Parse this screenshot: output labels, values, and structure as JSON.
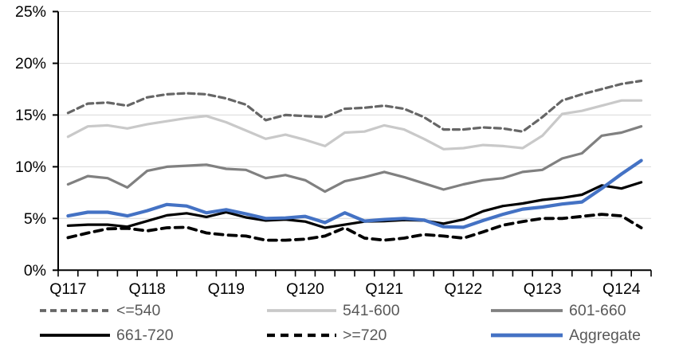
{
  "chart_data": {
    "type": "line",
    "title": "",
    "background": "#ffffff",
    "y_axis": {
      "min": 0,
      "max": 25,
      "tick_step": 5,
      "tick_labels": [
        "0%",
        "5%",
        "10%",
        "15%",
        "20%",
        "25%"
      ],
      "unit": "%"
    },
    "x_axis": {
      "n_points": 30,
      "first_point": "Q1 2017",
      "frequency": "quarterly",
      "visible_labels": [
        {
          "label": "Q117",
          "point_index": 0
        },
        {
          "label": "Q118",
          "point_index": 4
        },
        {
          "label": "Q119",
          "point_index": 8
        },
        {
          "label": "Q120",
          "point_index": 12
        },
        {
          "label": "Q121",
          "point_index": 16
        },
        {
          "label": "Q122",
          "point_index": 20
        },
        {
          "label": "Q123",
          "point_index": 24
        },
        {
          "label": "Q124",
          "point_index": 28
        }
      ]
    },
    "grid": {
      "horizontal": true,
      "vertical": false,
      "color": "#d9d9d9"
    },
    "series": [
      {
        "name": "<=540",
        "color": "#666666",
        "style": "dashed",
        "width": 3.2,
        "dash": "8 5",
        "values": [
          15.2,
          16.1,
          16.2,
          15.9,
          16.7,
          17.0,
          17.1,
          17.0,
          16.6,
          16.0,
          14.5,
          15.0,
          14.9,
          14.8,
          15.6,
          15.7,
          15.9,
          15.6,
          14.8,
          13.6,
          13.6,
          13.8,
          13.7,
          13.4,
          14.8,
          16.4,
          17.0,
          17.5,
          18.0,
          18.3
        ]
      },
      {
        "name": "541-600",
        "color": "#c9c9c9",
        "style": "solid",
        "width": 3.2,
        "dash": "",
        "values": [
          12.9,
          13.9,
          14.0,
          13.7,
          14.1,
          14.4,
          14.7,
          14.9,
          14.3,
          13.5,
          12.7,
          13.1,
          12.6,
          12.0,
          13.3,
          13.4,
          14.0,
          13.6,
          12.7,
          11.7,
          11.8,
          12.1,
          12.0,
          11.8,
          13.0,
          15.1,
          15.4,
          15.9,
          16.4,
          16.4
        ]
      },
      {
        "name": "601-660",
        "color": "#808080",
        "style": "solid",
        "width": 3.2,
        "dash": "",
        "values": [
          8.3,
          9.1,
          8.9,
          8.0,
          9.6,
          10.0,
          10.1,
          10.2,
          9.8,
          9.7,
          8.9,
          9.2,
          8.7,
          7.6,
          8.6,
          9.0,
          9.5,
          9.0,
          8.4,
          7.8,
          8.3,
          8.7,
          8.9,
          9.5,
          9.7,
          10.8,
          11.3,
          13.0,
          13.3,
          13.9
        ]
      },
      {
        "name": "661-720",
        "color": "#000000",
        "style": "solid",
        "width": 3.2,
        "dash": "",
        "values": [
          4.3,
          4.4,
          4.4,
          4.2,
          4.75,
          5.3,
          5.5,
          5.15,
          5.6,
          5.1,
          4.8,
          4.9,
          4.7,
          4.1,
          4.4,
          4.7,
          4.75,
          4.85,
          4.8,
          4.5,
          4.9,
          5.7,
          6.2,
          6.45,
          6.8,
          7.0,
          7.3,
          8.2,
          7.9,
          8.5
        ]
      },
      {
        "name": ">=720",
        "color": "#000000",
        "style": "dashed",
        "width": 3.8,
        "dash": "10 7",
        "values": [
          3.15,
          3.6,
          4.0,
          4.05,
          3.8,
          4.1,
          4.15,
          3.6,
          3.4,
          3.3,
          2.9,
          2.9,
          3.0,
          3.3,
          4.1,
          3.1,
          2.9,
          3.1,
          3.45,
          3.3,
          3.1,
          3.7,
          4.35,
          4.7,
          5.0,
          5.0,
          5.2,
          5.4,
          5.25,
          4.1
        ]
      },
      {
        "name": "Aggregate",
        "color": "#4472c4",
        "style": "solid",
        "width": 4.2,
        "dash": "",
        "values": [
          5.25,
          5.6,
          5.6,
          5.25,
          5.75,
          6.35,
          6.2,
          5.55,
          5.85,
          5.45,
          5.0,
          5.05,
          5.2,
          4.6,
          5.55,
          4.75,
          4.9,
          5.0,
          4.85,
          4.2,
          4.15,
          4.8,
          5.4,
          5.9,
          6.1,
          6.4,
          6.6,
          7.9,
          9.3,
          10.6
        ]
      }
    ],
    "legend": {
      "position": "bottom",
      "text_color": "#595959",
      "rows": [
        [
          "<=540",
          "541-600",
          "601-660"
        ],
        [
          "661-720",
          ">=720",
          "Aggregate"
        ]
      ]
    }
  },
  "colors": {
    "axis_line": "#000000",
    "axis_text": "#000000",
    "gridline": "#d9d9d9",
    "legend_text": "#595959",
    "accent_blue": "#4472c4"
  }
}
